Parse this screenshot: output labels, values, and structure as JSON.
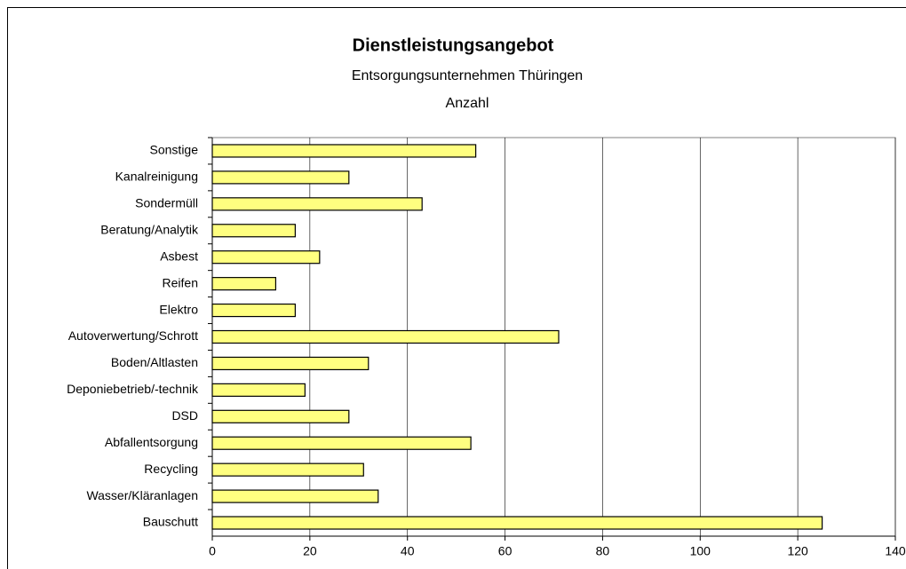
{
  "chart_data": {
    "type": "hbar",
    "title": "Dienstleistungsangebot",
    "subtitle": "Entsorgungsunternehmen Thüringen",
    "axis_label": "Anzahl",
    "categories": [
      "Sonstige",
      "Kanalreinigung",
      "Sondermüll",
      "Beratung/Analytik",
      "Asbest",
      "Reifen",
      "Elektro",
      "Autoverwertung/Schrott",
      "Boden/Altlasten",
      "Deponiebetrieb/-technik",
      "DSD",
      "Abfallentsorgung",
      "Recycling",
      "Wasser/Kläranlagen",
      "Bauschutt"
    ],
    "values": [
      54,
      28,
      43,
      17,
      22,
      13,
      17,
      71,
      32,
      19,
      28,
      53,
      31,
      34,
      125
    ],
    "color": "#ffff80",
    "xlim": [
      0,
      140
    ],
    "xticks": [
      0,
      20,
      40,
      60,
      80,
      100,
      120,
      140
    ],
    "grid": true
  }
}
